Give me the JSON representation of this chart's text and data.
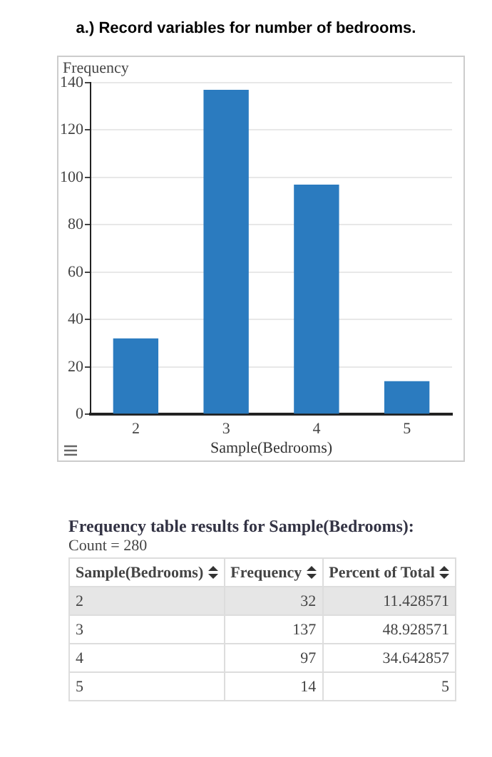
{
  "chart_data": {
    "type": "bar",
    "title": "a.) Record variables for number of bedrooms.",
    "xlabel": "Sample(Bedrooms)",
    "ylabel": "Frequency",
    "categories": [
      "2",
      "3",
      "4",
      "5"
    ],
    "values": [
      32,
      137,
      97,
      14
    ],
    "color": "#2b7bbf",
    "ylim": [
      0,
      140
    ],
    "yticks": [
      0,
      20,
      40,
      60,
      80,
      100,
      120,
      140
    ],
    "grid": "y",
    "annotations": [
      "Frequency table results for Sample(Bedrooms):",
      "Count = 280",
      "Percent of Total",
      "32",
      "11.428571",
      "137",
      "48.928571",
      "97",
      "34.642857",
      "14",
      "5"
    ]
  }
}
